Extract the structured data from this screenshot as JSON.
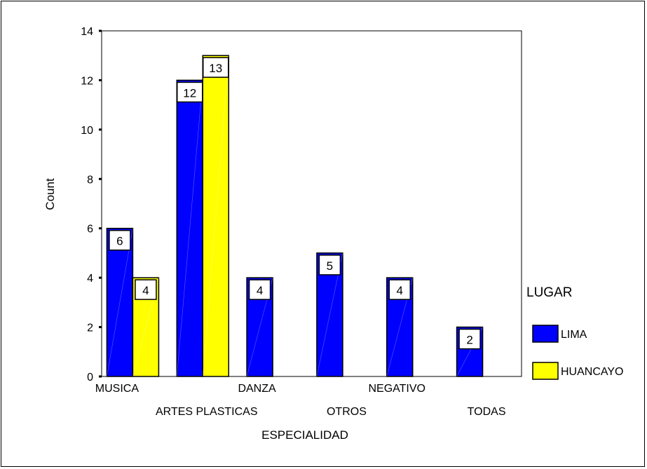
{
  "chart_data": {
    "type": "bar",
    "xlabel": "ESPECIALIDAD",
    "ylabel": "Count",
    "ylim": [
      0,
      14
    ],
    "yticks": [
      "0",
      "2",
      "4",
      "6",
      "8",
      "10",
      "12",
      "14"
    ],
    "grid": false,
    "categories": [
      "MUSICA",
      "ARTES PLASTICAS",
      "DANZA",
      "OTROS",
      "NEGATIVO",
      "TODAS"
    ],
    "legend": {
      "title": "LUGAR",
      "placement": "right"
    },
    "series": [
      {
        "name": "LIMA",
        "color": "#0000ff",
        "values": [
          6,
          12,
          4,
          5,
          4,
          2
        ]
      },
      {
        "name": "HUANCAYO",
        "color": "#ffff00",
        "values": [
          4,
          13,
          null,
          null,
          null,
          null
        ]
      }
    ],
    "data_labels": [
      [
        "6",
        "12",
        "4",
        "5",
        "4",
        "2"
      ],
      [
        "4",
        "13",
        "",
        "",
        "",
        ""
      ]
    ]
  }
}
